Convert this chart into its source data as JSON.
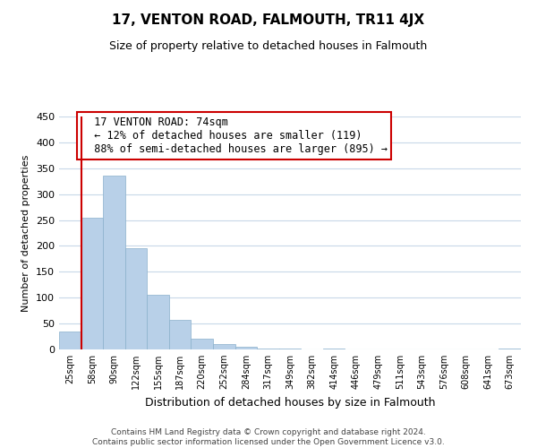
{
  "title": "17, VENTON ROAD, FALMOUTH, TR11 4JX",
  "subtitle": "Size of property relative to detached houses in Falmouth",
  "xlabel": "Distribution of detached houses by size in Falmouth",
  "ylabel": "Number of detached properties",
  "bar_labels": [
    "25sqm",
    "58sqm",
    "90sqm",
    "122sqm",
    "155sqm",
    "187sqm",
    "220sqm",
    "252sqm",
    "284sqm",
    "317sqm",
    "349sqm",
    "382sqm",
    "414sqm",
    "446sqm",
    "479sqm",
    "511sqm",
    "543sqm",
    "576sqm",
    "608sqm",
    "641sqm",
    "673sqm"
  ],
  "bar_values": [
    35,
    255,
    335,
    196,
    106,
    57,
    21,
    11,
    5,
    2,
    1,
    0,
    2,
    0,
    0,
    0,
    0,
    0,
    0,
    0,
    2
  ],
  "bar_color": "#b8d0e8",
  "bar_edge_color": "#8ab0cc",
  "vline_color": "#cc0000",
  "annotation_title": "17 VENTON ROAD: 74sqm",
  "annotation_line1": "← 12% of detached houses are smaller (119)",
  "annotation_line2": "88% of semi-detached houses are larger (895) →",
  "annotation_box_color": "#ffffff",
  "annotation_box_edge": "#cc0000",
  "ylim": [
    0,
    450
  ],
  "yticks": [
    0,
    50,
    100,
    150,
    200,
    250,
    300,
    350,
    400,
    450
  ],
  "footer_line1": "Contains HM Land Registry data © Crown copyright and database right 2024.",
  "footer_line2": "Contains public sector information licensed under the Open Government Licence v3.0.",
  "bg_color": "#ffffff",
  "grid_color": "#c8d8e8"
}
